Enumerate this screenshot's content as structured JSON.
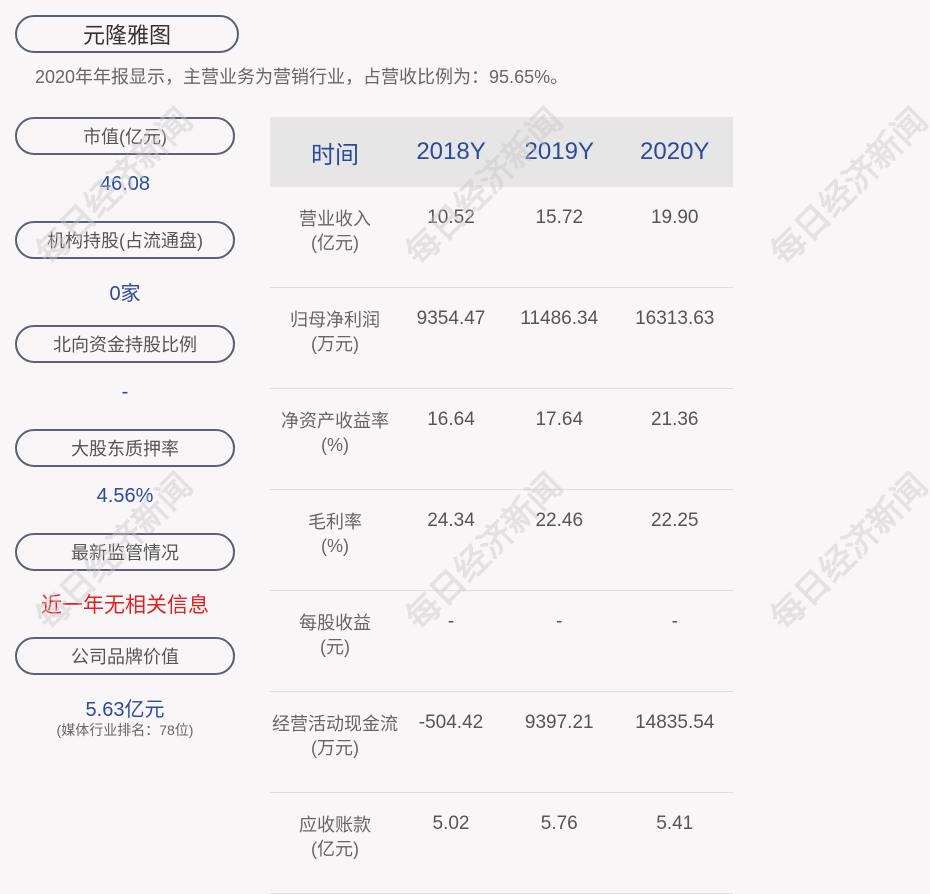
{
  "company": "元隆雅图",
  "summary": "2020年年报显示，主营业务为营销行业，占营收比例为：95.65%。",
  "watermark": "每日经济新闻",
  "colors": {
    "value": "#2c4a9a",
    "alert": "#e02020",
    "header_bg": "#e6e6e6"
  },
  "metrics": [
    {
      "label": "市值(亿元)",
      "value": "46.08"
    },
    {
      "label": "机构持股(占流通盘)",
      "value": "0家"
    },
    {
      "label": "北向资金持股比例",
      "value": "-"
    },
    {
      "label": "大股东质押率",
      "value": "4.56%"
    },
    {
      "label": "最新监管情况",
      "value": "近一年无相关信息"
    },
    {
      "label": "公司品牌价值",
      "value": "5.63亿元",
      "note": "(媒体行业排名：78位)"
    }
  ],
  "table": {
    "headers": [
      "时间",
      "2018Y",
      "2019Y",
      "2020Y"
    ],
    "rows": [
      {
        "label": "营业收入",
        "unit": "(亿元)",
        "values": [
          "10.52",
          "15.72",
          "19.90"
        ]
      },
      {
        "label": "归母净利润",
        "unit": "(万元)",
        "values": [
          "9354.47",
          "11486.34",
          "16313.63"
        ]
      },
      {
        "label": "净资产收益率",
        "unit": "(%)",
        "values": [
          "16.64",
          "17.64",
          "21.36"
        ]
      },
      {
        "label": "毛利率",
        "unit": "(%)",
        "values": [
          "24.34",
          "22.46",
          "22.25"
        ]
      },
      {
        "label": "每股收益",
        "unit": "(元)",
        "values": [
          "-",
          "-",
          "-"
        ]
      },
      {
        "label": "经营活动现金流",
        "unit": "(万元)",
        "values": [
          "-504.42",
          "9397.21",
          "14835.54"
        ]
      },
      {
        "label": "应收账款",
        "unit": "(亿元)",
        "values": [
          "5.02",
          "5.76",
          "5.41"
        ]
      }
    ]
  }
}
